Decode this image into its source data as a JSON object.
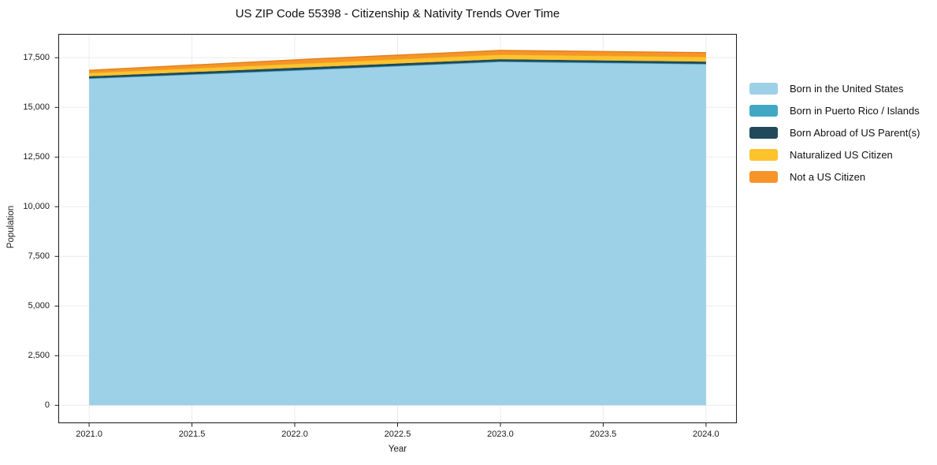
{
  "chart_data": {
    "type": "area",
    "stacked": true,
    "title": "US ZIP Code 55398 - Citizenship & Nativity Trends Over Time",
    "xlabel": "Year",
    "ylabel": "Population",
    "x": [
      2021,
      2022,
      2023,
      2024
    ],
    "xlim": [
      2020.85,
      2024.15
    ],
    "ylim": [
      -900,
      18700
    ],
    "xticks": [
      2021.0,
      2021.5,
      2022.0,
      2022.5,
      2023.0,
      2023.5,
      2024.0
    ],
    "xtick_labels": [
      "2021.0",
      "2021.5",
      "2022.0",
      "2022.5",
      "2023.0",
      "2023.5",
      "2024.0"
    ],
    "yticks": [
      0,
      2500,
      5000,
      7500,
      10000,
      12500,
      15000,
      17500
    ],
    "ytick_labels": [
      "0",
      "2,500",
      "5,000",
      "7,500",
      "10,000",
      "12,500",
      "15,000",
      "17,500"
    ],
    "grid": true,
    "legend_position": "right",
    "axis_color": "#1a1a1a",
    "grid_color": "#ebebeb",
    "series": [
      {
        "name": "Born in the United States",
        "color": "#9DD1E7",
        "edge": "#7FBEDC",
        "values": [
          16450,
          16860,
          17300,
          17180
        ]
      },
      {
        "name": "Born in Puerto Rico / Islands",
        "color": "#41A8C4",
        "edge": "#3795B0",
        "values": [
          15,
          15,
          15,
          15
        ]
      },
      {
        "name": "Born Abroad of US Parent(s)",
        "color": "#21495C",
        "edge": "#18374648",
        "values": [
          100,
          120,
          110,
          110
        ]
      },
      {
        "name": "Naturalized US Citizen",
        "color": "#FCC32D",
        "edge": "#E8AF1B",
        "values": [
          180,
          200,
          240,
          240
        ]
      },
      {
        "name": "Not a US Citizen",
        "color": "#F79429",
        "edge": "#E0821C",
        "values": [
          120,
          200,
          200,
          210
        ]
      }
    ]
  }
}
